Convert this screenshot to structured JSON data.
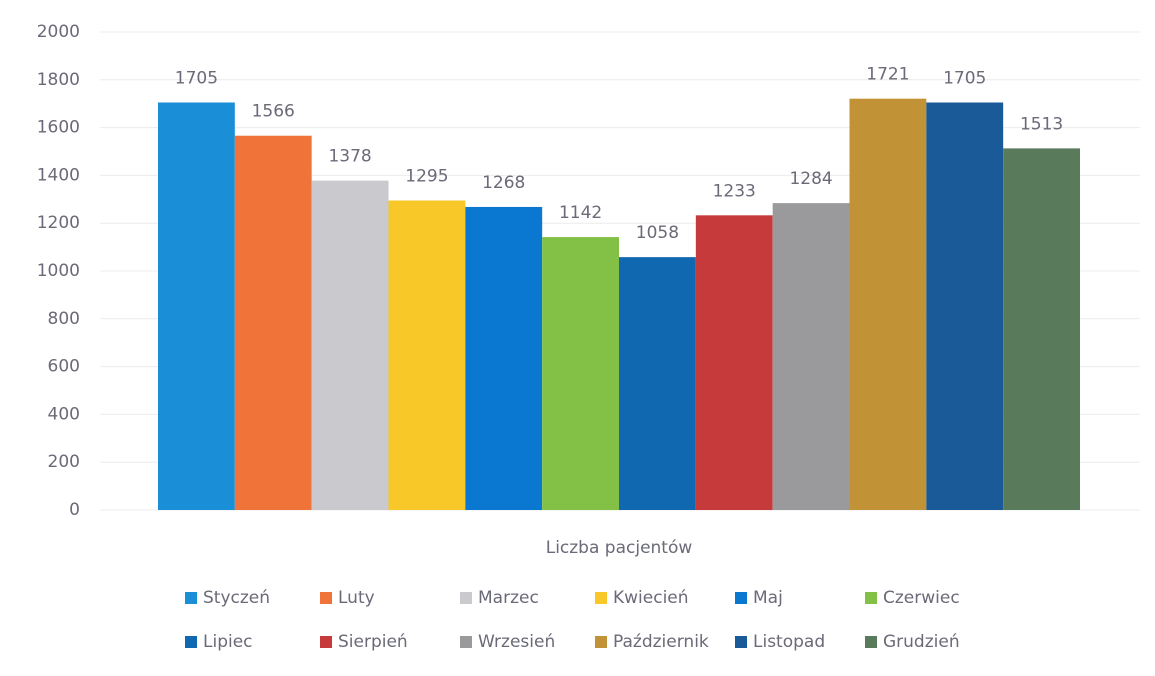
{
  "chart_data": {
    "type": "bar",
    "categories": [
      "Liczba pacjentów"
    ],
    "series": [
      {
        "name": "Styczeń",
        "color": "#1a8fd8",
        "values": [
          1705
        ]
      },
      {
        "name": "Luty",
        "color": "#f0743a",
        "values": [
          1566
        ]
      },
      {
        "name": "Marzec",
        "color": "#c9c9ce",
        "values": [
          1378
        ]
      },
      {
        "name": "Kwiecień",
        "color": "#f8c828",
        "values": [
          1295
        ]
      },
      {
        "name": "Maj",
        "color": "#0a78d0",
        "values": [
          1268
        ]
      },
      {
        "name": "Czerwiec",
        "color": "#82c046",
        "values": [
          1142
        ]
      },
      {
        "name": "Lipiec",
        "color": "#1068b0",
        "values": [
          1058
        ]
      },
      {
        "name": "Sierpień",
        "color": "#c63a3c",
        "values": [
          1233
        ]
      },
      {
        "name": "Wrzesień",
        "color": "#9a9a9c",
        "values": [
          1284
        ]
      },
      {
        "name": "Październik",
        "color": "#c29236",
        "values": [
          1721
        ]
      },
      {
        "name": "Listopad",
        "color": "#1a5a98",
        "values": [
          1705
        ]
      },
      {
        "name": "Grudzień",
        "color": "#5a7a5c",
        "values": [
          1513
        ]
      }
    ],
    "ylim": [
      0,
      2000
    ],
    "yticks": [
      0,
      200,
      400,
      600,
      800,
      1000,
      1200,
      1400,
      1600,
      1800,
      2000
    ],
    "grid": true,
    "legend": "bottom"
  }
}
